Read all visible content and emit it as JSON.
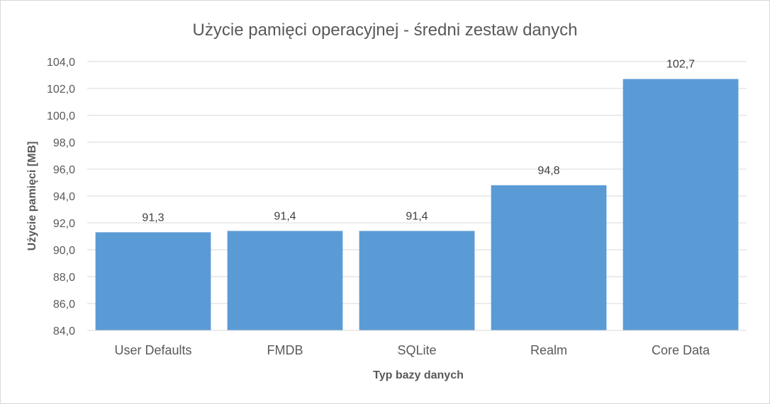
{
  "chart_data": {
    "type": "bar",
    "title": "Użycie pamięci operacyjnej - średni zestaw danych",
    "xlabel": "Typ bazy danych",
    "ylabel": "Użycie pamięci [MB]",
    "categories": [
      "User Defaults",
      "FMDB",
      "SQLite",
      "Realm",
      "Core Data"
    ],
    "values": [
      91.3,
      91.4,
      91.4,
      94.8,
      102.7
    ],
    "value_labels": [
      "91,3",
      "91,4",
      "91,4",
      "94,8",
      "102,7"
    ],
    "ylim": [
      84,
      104
    ],
    "yticks": [
      84,
      86,
      88,
      90,
      92,
      94,
      96,
      98,
      100,
      102,
      104
    ],
    "ytick_labels": [
      "84,0",
      "86,0",
      "88,0",
      "90,0",
      "92,0",
      "94,0",
      "96,0",
      "98,0",
      "100,0",
      "102,0",
      "104,0"
    ],
    "grid": true,
    "legend": "none",
    "bar_color": "#5b9bd5",
    "grid_color": "#d9d9d9"
  }
}
